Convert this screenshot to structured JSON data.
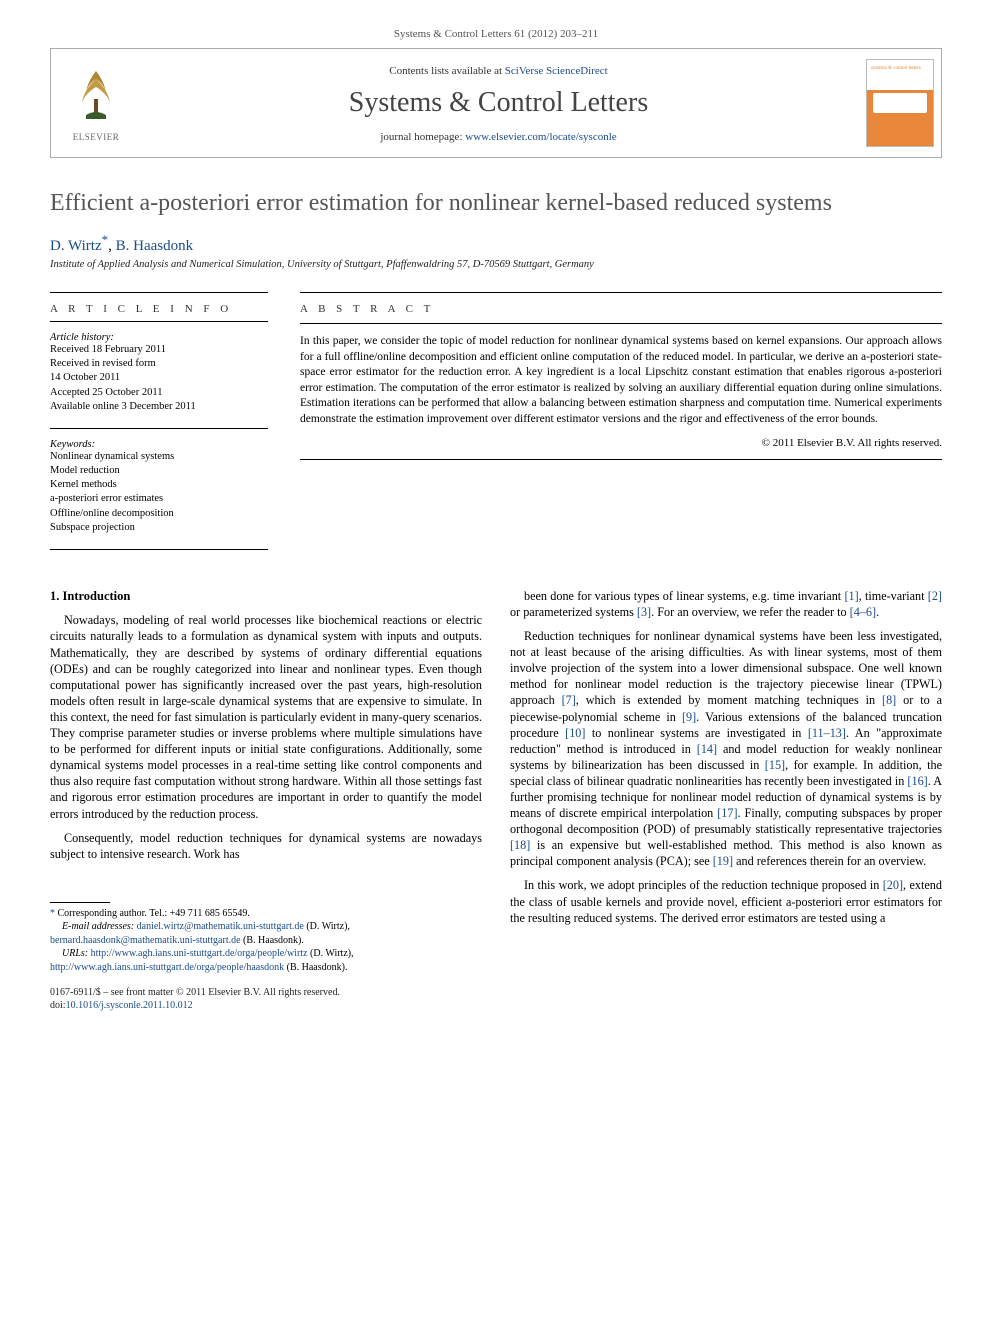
{
  "top_meta": {
    "journal_ref": "Systems & Control Letters 61 (2012) 203–211"
  },
  "header": {
    "contents_prefix": "Contents lists available at ",
    "contents_link": "SciVerse ScienceDirect",
    "journal_name": "Systems & Control Letters",
    "homepage_prefix": "journal homepage: ",
    "homepage_link": "www.elsevier.com/locate/sysconle",
    "publisher_logo_label": "ELSEVIER",
    "cover_label_top": "systems & control letters"
  },
  "article": {
    "title": "Efficient a-posteriori error estimation for nonlinear kernel-based reduced systems",
    "authors_html_prefix": "",
    "author1": "D. Wirtz",
    "author1_marker": "*",
    "author_sep": ", ",
    "author2": "B. Haasdonk",
    "affiliation": "Institute of Applied Analysis and Numerical Simulation, University of Stuttgart, Pfaffenwaldring 57, D-70569 Stuttgart, Germany"
  },
  "info": {
    "heading": "A R T I C L E   I N F O",
    "history_label": "Article history:",
    "history": [
      "Received 18 February 2011",
      "Received in revised form",
      "14 October 2011",
      "Accepted 25 October 2011",
      "Available online 3 December 2011"
    ],
    "keywords_label": "Keywords:",
    "keywords": [
      "Nonlinear dynamical systems",
      "Model reduction",
      "Kernel methods",
      "a-posteriori error estimates",
      "Offline/online decomposition",
      "Subspace projection"
    ]
  },
  "abstract": {
    "heading": "A B S T R A C T",
    "text": "In this paper, we consider the topic of model reduction for nonlinear dynamical systems based on kernel expansions. Our approach allows for a full offline/online decomposition and efficient online computation of the reduced model. In particular, we derive an a-posteriori state-space error estimator for the reduction error. A key ingredient is a local Lipschitz constant estimation that enables rigorous a-posteriori error estimation. The computation of the error estimator is realized by solving an auxiliary differential equation during online simulations. Estimation iterations can be performed that allow a balancing between estimation sharpness and computation time. Numerical experiments demonstrate the estimation improvement over different estimator versions and the rigor and effectiveness of the error bounds.",
    "copyright": "© 2011 Elsevier B.V. All rights reserved."
  },
  "body": {
    "section_heading": "1. Introduction",
    "left_paragraphs": [
      "Nowadays, modeling of real world processes like biochemical reactions or electric circuits naturally leads to a formulation as dynamical system with inputs and outputs. Mathematically, they are described by systems of ordinary differential equations (ODEs) and can be roughly categorized into linear and nonlinear types. Even though computational power has significantly increased over the past years, high-resolution models often result in large-scale dynamical systems that are expensive to simulate. In this context, the need for fast simulation is particularly evident in many-query scenarios. They comprise parameter studies or inverse problems where multiple simulations have to be performed for different inputs or initial state configurations. Additionally, some dynamical systems model processes in a real-time setting like control components and thus also require fast computation without strong hardware. Within all those settings fast and rigorous error estimation procedures are important in order to quantify the model errors introduced by the reduction process.",
      "Consequently, model reduction techniques for dynamical systems are nowadays subject to intensive research. Work has"
    ],
    "right_paragraphs": [
      "been done for various types of linear systems, e.g. time invariant [1], time-variant [2] or parameterized systems [3]. For an overview, we refer the reader to [4–6].",
      "Reduction techniques for nonlinear dynamical systems have been less investigated, not at least because of the arising difficulties. As with linear systems, most of them involve projection of the system into a lower dimensional subspace. One well known method for nonlinear model reduction is the trajectory piecewise linear (TPWL) approach [7], which is extended by moment matching techniques in [8] or to a piecewise-polynomial scheme in [9]. Various extensions of the balanced truncation procedure [10] to nonlinear systems are investigated in [11–13]. An \"approximate reduction\" method is introduced in [14] and model reduction for weakly nonlinear systems by bilinearization has been discussed in [15], for example. In addition, the special class of bilinear quadratic nonlinearities has recently been investigated in [16]. A further promising technique for nonlinear model reduction of dynamical systems is by means of discrete empirical interpolation [17]. Finally, computing subspaces by proper orthogonal decomposition (POD) of presumably statistically representative trajectories [18] is an expensive but well-established method. This method is also known as principal component analysis (PCA); see [19] and references therein for an overview.",
      "In this work, we adopt principles of the reduction technique proposed in [20], extend the class of usable kernels and provide novel, efficient a-posteriori error estimators for the resulting reduced systems. The derived error estimators are tested using a"
    ]
  },
  "footnotes": {
    "corresponding": "Corresponding author. Tel.: +49 711 685 65549.",
    "email_label": "E-mail addresses:",
    "email1": "daniel.wirtz@mathematik.uni-stuttgart.de",
    "email1_who": " (D. Wirtz), ",
    "email2": "bernard.haasdonk@mathematik.uni-stuttgart.de",
    "email2_who": " (B. Haasdonk).",
    "urls_label": "URLs:",
    "url1": "http://www.agh.ians.uni-stuttgart.de/orga/people/wirtz",
    "url1_who": " (D. Wirtz), ",
    "url2": "http://www.agh.ians.uni-stuttgart.de/orga/people/haasdonk",
    "url2_who": " (B. Haasdonk)."
  },
  "footer": {
    "issn_line": "0167-6911/$ – see front matter © 2011 Elsevier B.V. All rights reserved.",
    "doi_label": "doi:",
    "doi": "10.1016/j.sysconle.2011.10.012"
  },
  "colors": {
    "link": "#1a4b8b",
    "title_grey": "#555",
    "cover_orange": "#e8863a"
  }
}
